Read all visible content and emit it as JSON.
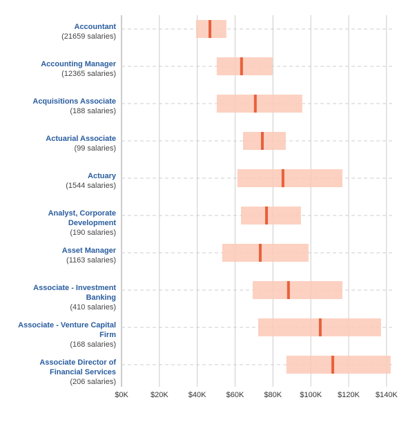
{
  "chart_data": {
    "type": "range",
    "categories": [
      [
        "Accountant"
      ],
      [
        "Accounting Manager"
      ],
      [
        "Acquisitions Associate"
      ],
      [
        "Actuarial Associate"
      ],
      [
        "Actuary"
      ],
      [
        "Analyst, Corporate",
        "Development"
      ],
      [
        "Asset Manager"
      ],
      [
        "Associate - Investment",
        "Banking"
      ],
      [
        "Associate - Venture Capital",
        "Firm"
      ],
      [
        "Associate Director of",
        "Financial Services"
      ]
    ],
    "counts": [
      "(21659 salaries)",
      "(12365 salaries)",
      "(188 salaries)",
      "(99 salaries)",
      "(1544 salaries)",
      "(190 salaries)",
      "(1163 salaries)",
      "(410 salaries)",
      "(168 salaries)",
      "(206 salaries)"
    ],
    "low": [
      39.4,
      50.3,
      50.3,
      64.2,
      61.2,
      63.1,
      53.2,
      69.3,
      72.2,
      87.1
    ],
    "median": [
      46.7,
      63.4,
      70.7,
      74.4,
      85.3,
      76.6,
      73.3,
      88.2,
      105,
      111.6
    ],
    "high": [
      55.4,
      79.8,
      95.5,
      86.8,
      116.7,
      94.8,
      98.8,
      116.7,
      137.1,
      142.2
    ],
    "range_color": "#fcc9b6",
    "median_color": "#e8603c",
    "xlim": [
      0,
      143
    ],
    "xticks": [
      {
        "value": 0,
        "label": "$0K"
      },
      {
        "value": 20,
        "label": "$20K"
      },
      {
        "value": 40,
        "label": "$40K"
      },
      {
        "value": 60,
        "label": "$60K"
      },
      {
        "value": 80,
        "label": "$80K"
      },
      {
        "value": 100,
        "label": "$100K"
      },
      {
        "value": 120,
        "label": "$120K"
      },
      {
        "value": 140,
        "label": "$140K"
      }
    ],
    "grid": true
  }
}
